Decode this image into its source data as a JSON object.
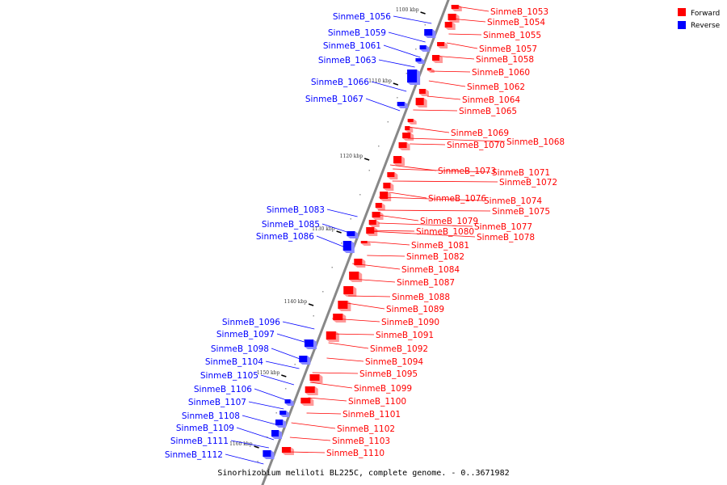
{
  "caption": "Sinorhizobium meliloti BL225C, complete genome. - 0..3671982",
  "legend": [
    {
      "label": "Forward",
      "color": "#ff0000"
    },
    {
      "label": "Reverse",
      "color": "#0000ff"
    }
  ],
  "colors": {
    "forward": "#ff0000",
    "reverse": "#0000ff",
    "axis": "#888888"
  },
  "ticks": [
    "1100 kbp",
    "1110 kbp",
    "1120 kbp",
    "1130 kbp",
    "1140 kbp",
    "1150 kbp",
    "1160 kbp"
  ],
  "forward_genes": [
    "SinmeB_1053",
    "SinmeB_1054",
    "SinmeB_1055",
    "SinmeB_1057",
    "SinmeB_1058",
    "SinmeB_1060",
    "SinmeB_1062",
    "SinmeB_1064",
    "SinmeB_1065",
    "SinmeB_1069",
    "SinmeB_1068",
    "SinmeB_1070",
    "SinmeB_1073",
    "SinmeB_1071",
    "SinmeB_1072",
    "SinmeB_1076",
    "SinmeB_1074",
    "SinmeB_1075",
    "SinmeB_1079",
    "SinmeB_1077",
    "SinmeB_1080",
    "SinmeB_1078",
    "SinmeB_1081",
    "SinmeB_1082",
    "SinmeB_1084",
    "SinmeB_1087",
    "SinmeB_1088",
    "SinmeB_1089",
    "SinmeB_1090",
    "SinmeB_1091",
    "SinmeB_1092",
    "SinmeB_1094",
    "SinmeB_1095",
    "SinmeB_1099",
    "SinmeB_1100",
    "SinmeB_1101",
    "SinmeB_1102",
    "SinmeB_1103",
    "SinmeB_1110"
  ],
  "reverse_genes": [
    "SinmeB_1056",
    "SinmeB_1059",
    "SinmeB_1061",
    "SinmeB_1063",
    "SinmeB_1066",
    "SinmeB_1067",
    "SinmeB_1083",
    "SinmeB_1085",
    "SinmeB_1086",
    "SinmeB_1096",
    "SinmeB_1097",
    "SinmeB_1098",
    "SinmeB_1104",
    "SinmeB_1105",
    "SinmeB_1106",
    "SinmeB_1107",
    "SinmeB_1108",
    "SinmeB_1109",
    "SinmeB_1111",
    "SinmeB_1112"
  ]
}
